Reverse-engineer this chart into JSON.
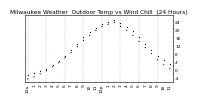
{
  "title": "Milwaukee Weather  Outdoor Temp vs Wind Chill  (24 Hours)",
  "outdoor_temp": [
    -2.5,
    -1.5,
    -0.5,
    0.5,
    2.5,
    4.5,
    7.0,
    10.0,
    13.0,
    16.0,
    18.5,
    20.5,
    22.5,
    23.5,
    24.5,
    23.0,
    21.0,
    19.0,
    16.0,
    13.0,
    10.0,
    7.0,
    5.0,
    3.0
  ],
  "wind_chill": [
    -4.5,
    -3.5,
    -2.0,
    -0.5,
    1.5,
    3.5,
    6.0,
    8.5,
    11.5,
    14.5,
    17.0,
    19.5,
    21.5,
    22.5,
    23.5,
    21.5,
    19.5,
    17.0,
    14.0,
    11.0,
    8.0,
    5.0,
    2.5,
    0.5
  ],
  "hours": [
    "12a",
    "1",
    "2",
    "3",
    "4",
    "5",
    "6",
    "7",
    "8",
    "9",
    "10",
    "11",
    "12p",
    "1",
    "2",
    "3",
    "4",
    "5",
    "6",
    "7",
    "8",
    "9",
    "10",
    "11"
  ],
  "outdoor_color": "#000000",
  "wind_chill_color_low": "#0000bb",
  "wind_chill_color_high": "#dd0000",
  "background": "#ffffff",
  "ylim": [
    -6,
    27
  ],
  "ytick_labels": [
    "-4",
    "",
    "0",
    "",
    "4",
    "",
    "8",
    "",
    "12",
    "",
    "16",
    "",
    "20",
    "",
    "24"
  ],
  "ytick_values": [
    -4,
    -2,
    0,
    2,
    4,
    6,
    8,
    10,
    12,
    14,
    16,
    18,
    20,
    22,
    24
  ],
  "title_fontsize": 4.2,
  "tick_fontsize": 3.2,
  "grid_color": "#bbbbbb",
  "dot_size": 0.8
}
